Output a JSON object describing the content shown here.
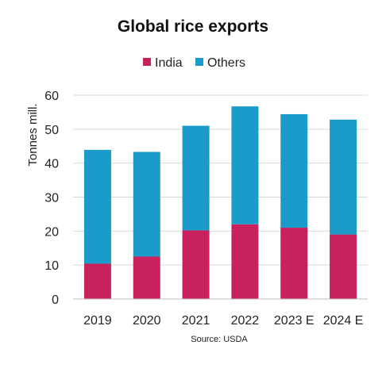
{
  "chart_data": {
    "type": "bar",
    "stacked": true,
    "title": "Global rice exports",
    "ylabel": "Tonnes mill.",
    "xlabel": "",
    "source": "Source: USDA",
    "categories": [
      "2019",
      "2020",
      "2021",
      "2022",
      "2023 E",
      "2024 E"
    ],
    "series": [
      {
        "name": "India",
        "color": "#c8215d",
        "values": [
          10.4,
          12.5,
          20.2,
          22.0,
          21.0,
          19.0
        ]
      },
      {
        "name": "Others",
        "color": "#1a9bc9",
        "values": [
          33.5,
          30.8,
          30.8,
          34.7,
          33.4,
          33.8
        ]
      }
    ],
    "ylim": [
      0,
      60
    ],
    "yticks": [
      0,
      10,
      20,
      30,
      40,
      50,
      60
    ],
    "grid": true,
    "legend_position": "top-center"
  }
}
